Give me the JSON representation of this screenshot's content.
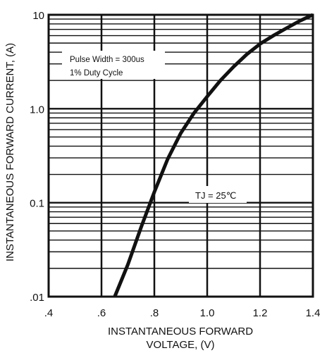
{
  "chart_data": {
    "type": "line",
    "xlabel_lines": [
      "INSTANTANEOUS FORWARD",
      "VOLTAGE, (V)"
    ],
    "ylabel": "INSTANTANEOUS FORWARD CURRENT, (A)",
    "x_ticks": [
      ".4",
      ".6",
      ".8",
      "1.0",
      "1.2",
      "1.4"
    ],
    "y_ticks": [
      ".01",
      "0.1",
      "1.0",
      "10"
    ],
    "xlim": [
      0.4,
      1.4
    ],
    "ylim": [
      0.01,
      10
    ],
    "y_scale": "log",
    "grid": true,
    "annotations": {
      "pulse": [
        "Pulse Width = 300us",
        "1% Duty Cycle"
      ],
      "temp": "TJ = 25℃"
    },
    "series": [
      {
        "x": [
          0.65,
          0.7,
          0.75,
          0.8,
          0.85,
          0.9,
          0.95,
          1.0,
          1.05,
          1.1,
          1.15,
          1.2,
          1.25,
          1.3,
          1.35,
          1.4
        ],
        "y": [
          0.01,
          0.022,
          0.055,
          0.13,
          0.29,
          0.55,
          0.9,
          1.35,
          2.0,
          2.8,
          3.8,
          4.9,
          6.0,
          7.2,
          8.6,
          10
        ]
      }
    ]
  }
}
